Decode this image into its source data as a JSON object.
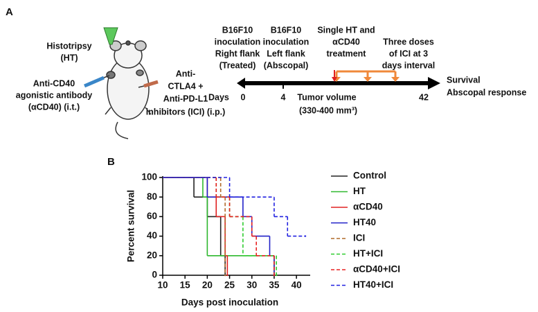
{
  "panel_a": {
    "label": "A",
    "ht_label": [
      "Histotripsy",
      "(HT)"
    ],
    "cd40_label": [
      "Anti-CD40",
      "agonistic antibody",
      "(αCD40) (i.t.)"
    ],
    "ici_label": [
      "Anti-",
      "CTLA4 +",
      "Anti-PD-L1",
      "inhibitors (ICI) (i.p.)"
    ],
    "events": [
      [
        "B16F10",
        "inoculation",
        "Right flank",
        "(Treated)"
      ],
      [
        "B16F10",
        "inoculation",
        "Left flank",
        "(Abscopal)"
      ],
      [
        "Single HT and",
        "αCD40",
        "treatment"
      ],
      [
        "Three doses",
        "of ICI at 3",
        "days interval"
      ]
    ],
    "days_label": "Days",
    "day_ticks": [
      "0",
      "4",
      "42"
    ],
    "tumor_volume": [
      "Tumor volume",
      "(330-400 mm³)"
    ],
    "outcome": [
      "Survival",
      "Abscopal response"
    ]
  },
  "chart_data": {
    "type": "step",
    "panel_label": "B",
    "x_label": "Days post inoculation",
    "y_label": "Percent survival",
    "xlim": [
      10,
      42
    ],
    "xticks": [
      10,
      15,
      20,
      25,
      30,
      35,
      40
    ],
    "ylim": [
      0,
      100
    ],
    "yticks": [
      0,
      20,
      40,
      60,
      80,
      100
    ],
    "legend": "right",
    "series": [
      {
        "name": "Control",
        "color": "#222222",
        "dashed": false,
        "x": [
          10,
          17,
          20,
          23,
          24
        ],
        "values": [
          100,
          80,
          60,
          20,
          0
        ]
      },
      {
        "name": "HT",
        "color": "#2db82d",
        "dashed": false,
        "x": [
          10,
          19,
          20,
          35
        ],
        "values": [
          100,
          80,
          20,
          0
        ]
      },
      {
        "name": "αCD40",
        "color": "#e02020",
        "dashed": false,
        "x": [
          10,
          20,
          22,
          24,
          24.5
        ],
        "values": [
          100,
          80,
          60,
          20,
          0
        ]
      },
      {
        "name": "HT40",
        "color": "#2020c8",
        "dashed": false,
        "x": [
          10,
          20,
          28,
          30,
          34,
          35
        ],
        "values": [
          100,
          80,
          60,
          40,
          20,
          0
        ]
      },
      {
        "name": "ICI",
        "color": "#b06a28",
        "dashed": true,
        "x": [
          10,
          23,
          24
        ],
        "values": [
          100,
          80,
          0
        ]
      },
      {
        "name": "HT+ICI",
        "color": "#2dcc2d",
        "dashed": true,
        "x": [
          10,
          22,
          25,
          28,
          35.5
        ],
        "values": [
          100,
          80,
          60,
          20,
          0
        ]
      },
      {
        "name": "αCD40+ICI",
        "color": "#e82020",
        "dashed": true,
        "x": [
          10,
          22,
          25,
          30,
          31,
          35
        ],
        "values": [
          100,
          80,
          60,
          40,
          20,
          0
        ]
      },
      {
        "name": "HT40+ICI",
        "color": "#2020e0",
        "dashed": true,
        "x": [
          10,
          25,
          35,
          38,
          42
        ],
        "values": [
          100,
          80,
          60,
          40,
          40
        ]
      }
    ]
  }
}
